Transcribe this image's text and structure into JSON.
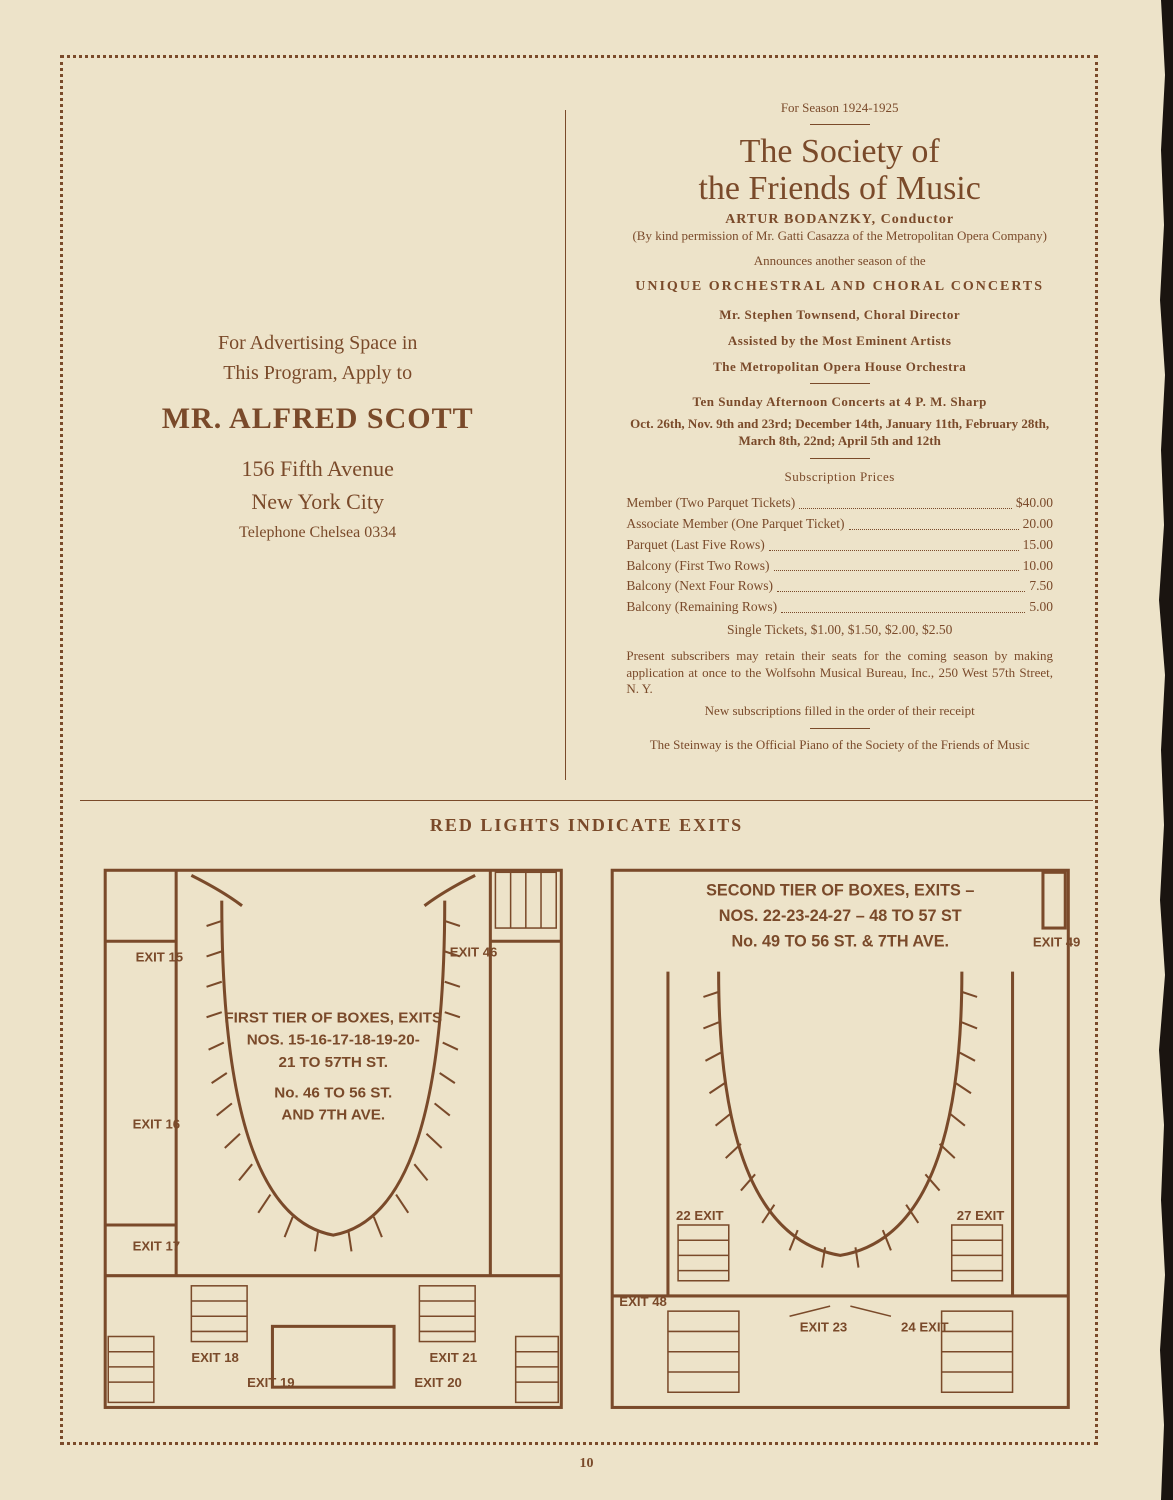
{
  "colors": {
    "ink": "#7a4a2a",
    "paper": "#ede3c9",
    "bg": "#1a1410"
  },
  "left": {
    "intro1": "For Advertising Space in",
    "intro2": "This Program, Apply to",
    "name": "MR. ALFRED SCOTT",
    "addr1": "156 Fifth Avenue",
    "addr2": "New York City",
    "tel": "Telephone Chelsea 0334"
  },
  "right": {
    "season": "For Season 1924-1925",
    "title1": "The Society of",
    "title2": "the Friends of Music",
    "conductor": "ARTUR BODANZKY, Conductor",
    "permission": "(By kind permission of Mr. Gatti Casazza of the Metropolitan Opera Company)",
    "announces": "Announces another season of the",
    "unique": "UNIQUE ORCHESTRAL AND CHORAL CONCERTS",
    "director": "Mr. Stephen Townsend, Choral Director",
    "assisted": "Assisted by the Most Eminent Artists",
    "orchestra": "The Metropolitan Opera House Orchestra",
    "concerts": "Ten Sunday Afternoon Concerts at 4 P. M. Sharp",
    "dates": "Oct. 26th, Nov. 9th and 23rd; December 14th, January 11th, February 28th, March 8th, 22nd; April 5th and 12th",
    "subhead": "Subscription Prices",
    "prices": [
      {
        "label": "Member (Two Parquet Tickets)",
        "val": "$40.00"
      },
      {
        "label": "Associate Member (One Parquet Ticket)",
        "val": "20.00"
      },
      {
        "label": "Parquet (Last Five Rows)",
        "val": "15.00"
      },
      {
        "label": "Balcony (First Two Rows)",
        "val": "10.00"
      },
      {
        "label": "Balcony (Next Four Rows)",
        "val": "7.50"
      },
      {
        "label": "Balcony (Remaining Rows)",
        "val": "5.00"
      }
    ],
    "single": "Single Tickets, $1.00, $1.50, $2.00, $2.50",
    "retain": "Present subscribers may retain their seats for the coming season by making application at once to the Wolfsohn Musical Bureau, Inc., 250 West 57th Street, N. Y.",
    "newsub": "New subscriptions filled in the order of their receipt",
    "steinway": "The Steinway is the Official Piano of the Society of the Friends of Music"
  },
  "diagrams": {
    "header": "RED LIGHTS INDICATE EXITS",
    "first": {
      "title1": "FIRST TIER OF BOXES, EXITS",
      "title2": "NOS. 15-16-17-18-19-20-",
      "title3": "21 TO 57TH ST.",
      "title4": "No. 46 TO 56 ST.",
      "title5": "AND 7TH AVE.",
      "exits": [
        "EXIT 15",
        "EXIT 16",
        "EXIT 17",
        "EXIT 18",
        "EXIT 19",
        "EXIT 20",
        "EXIT 21",
        "EXIT 46"
      ]
    },
    "second": {
      "title1": "SECOND TIER OF BOXES, EXITS –",
      "title2": "NOS. 22-23-24-27 – 48 TO 57 ST",
      "title3": "No. 49 TO 56 ST. & 7TH AVE.",
      "exits": [
        "EXIT 49",
        "22 EXIT",
        "27 EXIT",
        "EXIT 48",
        "EXIT 23",
        "24 EXIT"
      ]
    }
  },
  "page_num": "10"
}
